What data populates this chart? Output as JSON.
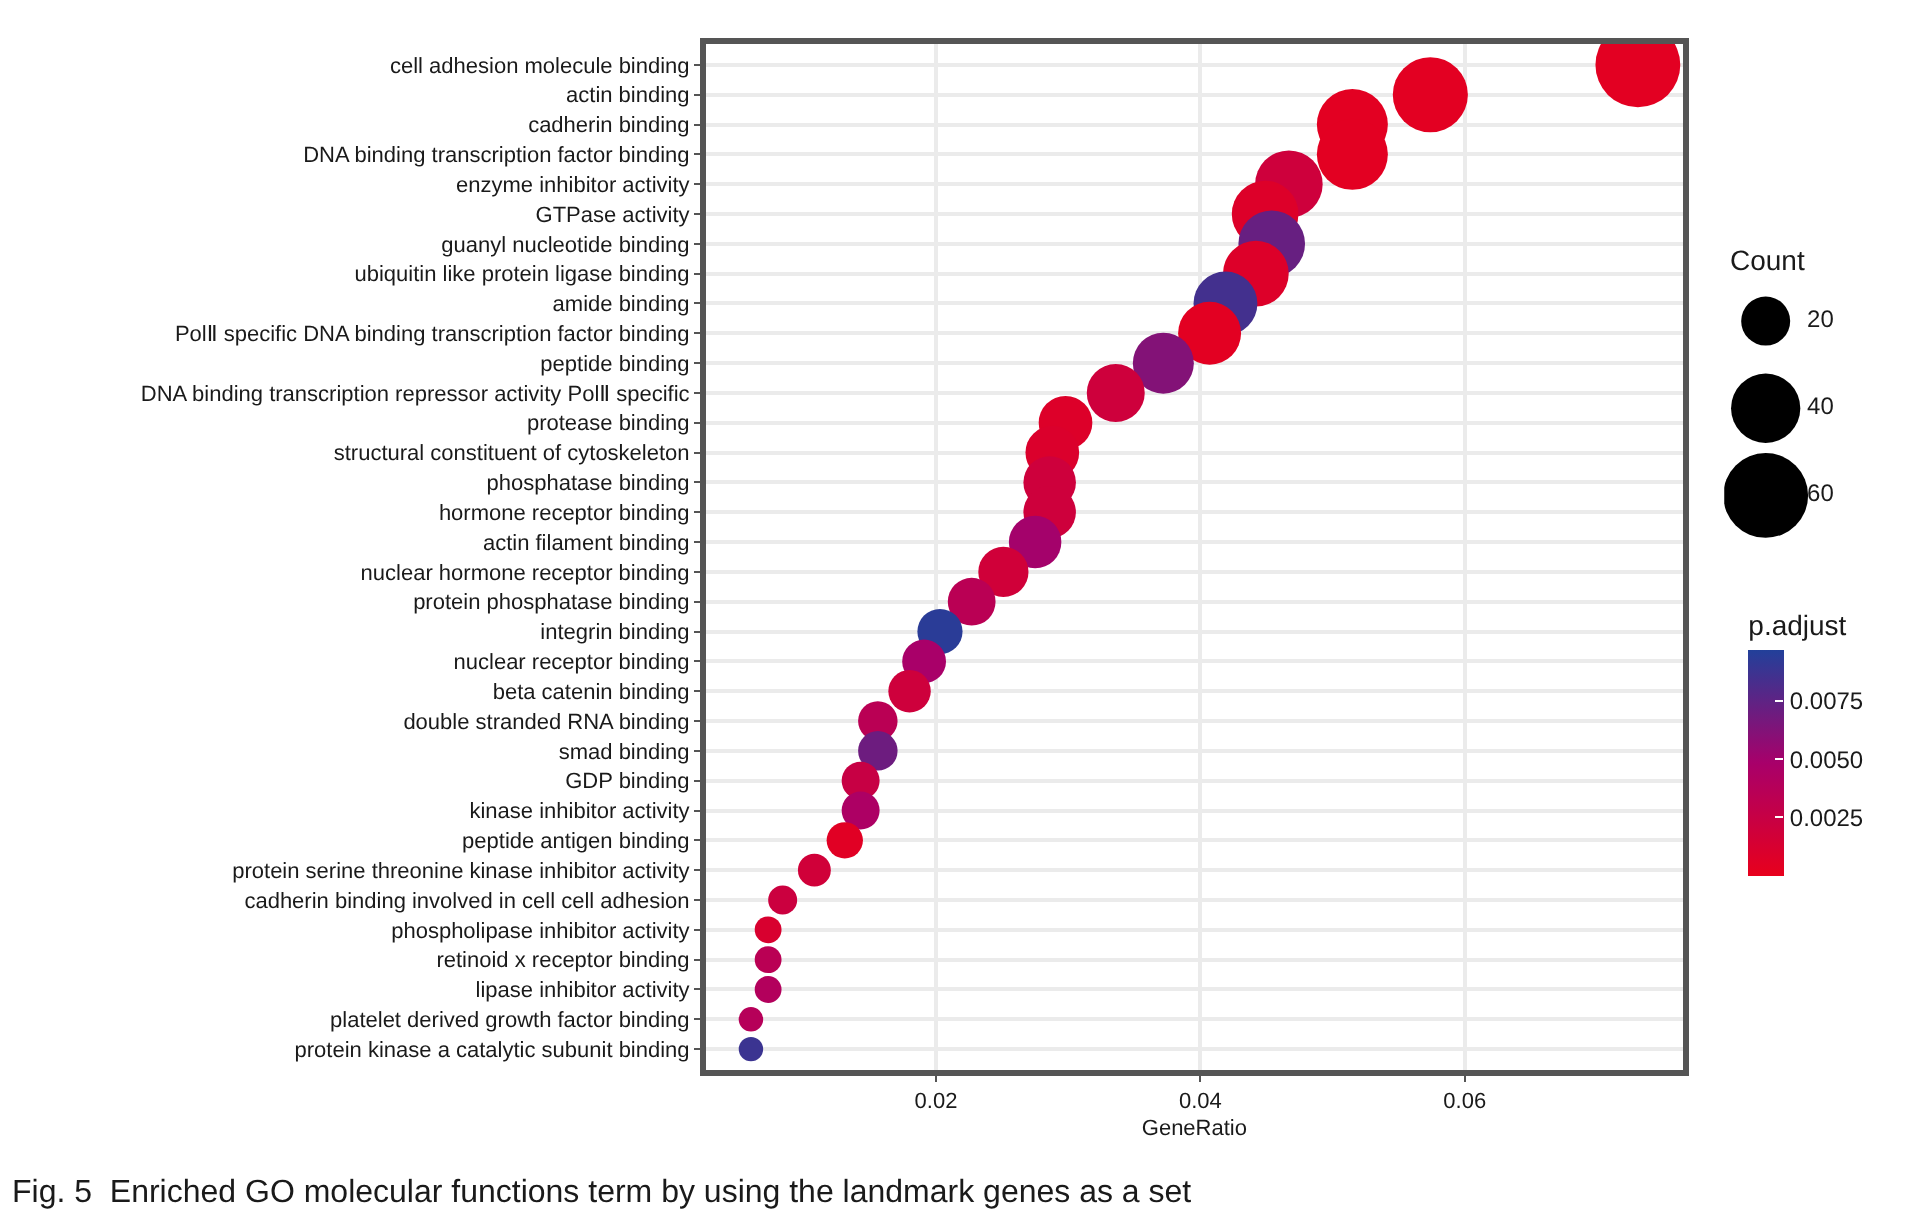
{
  "chart_data": {
    "type": "bubble",
    "xlabel": "GeneRatio",
    "legend_title": "Count",
    "clabel": "p.adjust",
    "categories": [
      "cell adhesion molecule binding",
      "actin binding",
      "cadherin binding",
      "DNA binding transcription factor binding",
      "enzyme inhibitor activity",
      "GTPase activity",
      "guanyl nucleotide binding",
      "ubiquitin like protein ligase binding",
      "amide binding",
      "PolⅡ specific DNA binding transcription factor binding",
      "peptide binding",
      "DNA binding transcription repressor activity PolⅡ specific",
      "protease binding",
      "structural constituent of cytoskeleton",
      "phosphatase binding",
      "hormone receptor binding",
      "actin filament binding",
      "nuclear hormone receptor binding",
      "protein phosphatase binding",
      "integrin binding",
      "nuclear receptor binding",
      "beta catenin binding",
      "double stranded RNA binding",
      "smad binding",
      "GDP binding",
      "kinase inhibitor activity",
      "peptide antigen binding",
      "protein serine threonine kinase inhibitor activity",
      "cadherin binding involved in cell cell adhesion",
      "phospholipase inhibitor activity",
      "retinoid x receptor binding",
      "lipase inhibitor activity",
      "platelet derived growth factor binding",
      "protein kinase a catalytic subunit binding"
    ],
    "values": [
      0.0731,
      0.0574,
      0.0515,
      0.0515,
      0.0467,
      0.0449,
      0.0454,
      0.0442,
      0.0419,
      0.0407,
      0.0372,
      0.0336,
      0.0298,
      0.0288,
      0.0286,
      0.0286,
      0.0275,
      0.0251,
      0.0227,
      0.0203,
      0.0191,
      0.018,
      0.0156,
      0.0156,
      0.0143,
      0.0143,
      0.0131,
      0.0108,
      0.0084,
      0.0073,
      0.0073,
      0.0073,
      0.006,
      0.006
    ],
    "sizes": [
      60,
      47,
      42,
      42,
      38,
      37,
      37,
      36,
      34,
      33,
      31,
      28,
      24,
      24,
      23,
      23,
      23,
      21,
      19,
      17,
      16,
      15,
      13,
      13,
      12,
      12,
      11,
      9,
      7,
      6,
      6,
      6,
      5,
      5
    ],
    "size_legend": [
      20,
      40,
      60
    ],
    "cvalues": [
      0.0004,
      0.0004,
      0.0004,
      0.0004,
      0.002,
      0.0008,
      0.0072,
      0.0008,
      0.0085,
      0.0004,
      0.0062,
      0.002,
      0.0008,
      0.001,
      0.002,
      0.002,
      0.005,
      0.0018,
      0.0035,
      0.0094,
      0.0048,
      0.002,
      0.0035,
      0.007,
      0.0025,
      0.0045,
      0.0005,
      0.0018,
      0.0022,
      0.0012,
      0.0035,
      0.004,
      0.0038,
      0.0088
    ],
    "clim": [
      0,
      0.0097
    ],
    "cticks": [
      0.0025,
      {
        "value": 0.005,
        "label": "0.0050"
      },
      0.0075
    ],
    "orientation": "horizontal",
    "xlim": [
      0.0026,
      0.0765
    ],
    "xticks": [
      0.02,
      0.04,
      0.06
    ],
    "grid": true,
    "annotations": [
      "Fig. 5  Enriched GO molecular functions term by using the landmark genes as a set"
    ]
  }
}
